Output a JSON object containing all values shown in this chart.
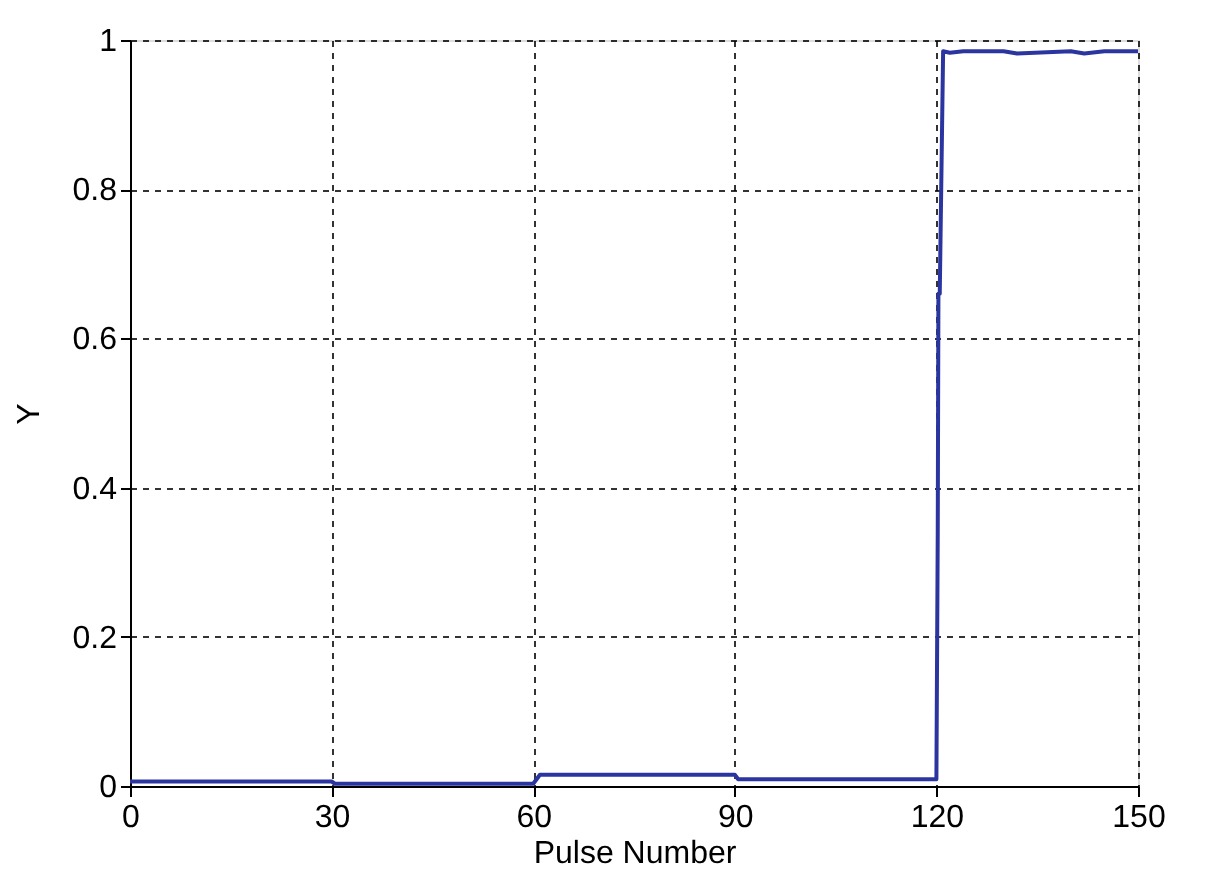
{
  "chart_data": {
    "type": "line",
    "xlabel": "Pulse Number",
    "ylabel": "Y",
    "xlim": [
      0,
      150
    ],
    "xticks": [
      0,
      30,
      60,
      90,
      120,
      150
    ],
    "ylim": [
      0,
      1
    ],
    "yticks": [
      0,
      0.2,
      0.4,
      0.6,
      0.8,
      1
    ],
    "grid": true,
    "marker": "none",
    "line_style": "solid",
    "series": [
      {
        "color": "#2b35a0",
        "x": [
          0,
          30,
          30.5,
          60,
          61,
          90,
          90.5,
          120,
          120.2,
          120.3,
          120.5,
          121,
          122,
          124,
          130,
          132,
          140,
          142,
          145,
          150
        ],
        "values": [
          0.006,
          0.006,
          0.003,
          0.003,
          0.015,
          0.015,
          0.009,
          0.009,
          0.34,
          0.66,
          0.66,
          0.985,
          0.983,
          0.985,
          0.985,
          0.982,
          0.985,
          0.982,
          0.985,
          0.985
        ]
      }
    ]
  }
}
